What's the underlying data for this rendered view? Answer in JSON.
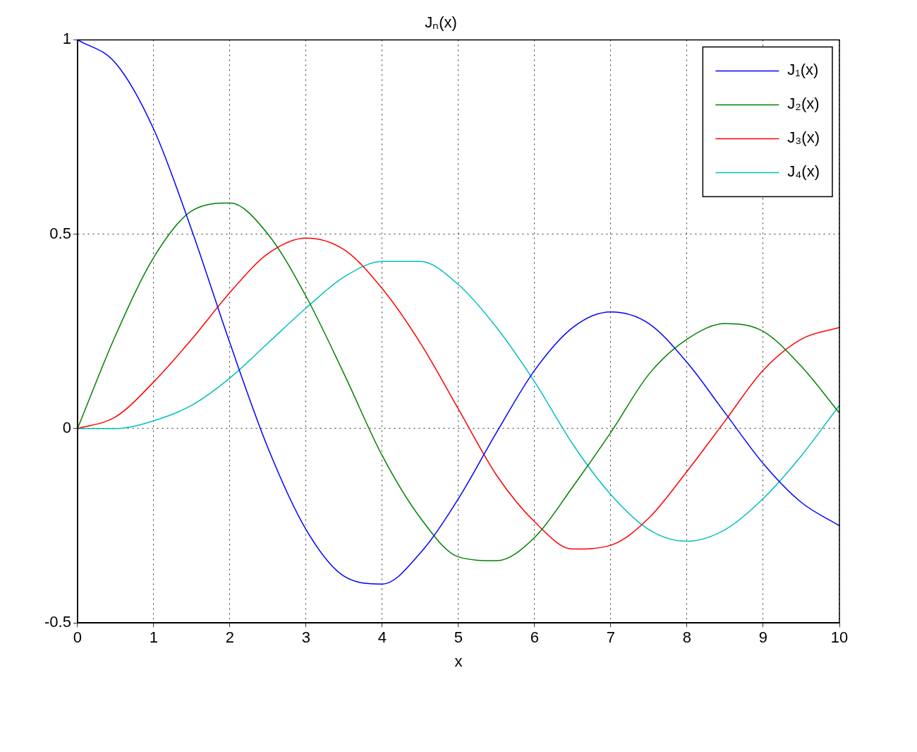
{
  "chart_data": {
    "type": "line",
    "title": "Jₙ(x)",
    "xlabel": "x",
    "x": [
      0,
      0.5,
      1,
      1.5,
      2,
      2.5,
      3,
      3.5,
      4,
      4.5,
      5,
      5.5,
      6,
      6.5,
      7,
      7.5,
      8,
      8.5,
      9,
      9.5,
      10
    ],
    "xlim": [
      0,
      10
    ],
    "xticks": [
      0,
      1,
      2,
      3,
      4,
      5,
      6,
      7,
      8,
      9,
      10
    ],
    "ylim": [
      -0.5,
      1
    ],
    "yticks": [
      -0.5,
      0,
      0.5,
      1
    ],
    "grid": true,
    "legend": "top right",
    "marker": "none",
    "line_style": "solid",
    "series": [
      {
        "name": "J₁(x)",
        "color": "#0000ff",
        "values": [
          1,
          0.94,
          0.77,
          0.51,
          0.22,
          -0.05,
          -0.26,
          -0.38,
          -0.4,
          -0.32,
          -0.18,
          -0.01,
          0.15,
          0.26,
          0.3,
          0.27,
          0.17,
          0.04,
          -0.09,
          -0.19,
          -0.25
        ]
      },
      {
        "name": "J₂(x)",
        "color": "#008000",
        "values": [
          0,
          0.24,
          0.44,
          0.56,
          0.58,
          0.5,
          0.34,
          0.14,
          -0.07,
          -0.23,
          -0.33,
          -0.34,
          -0.28,
          -0.15,
          -0.01,
          0.14,
          0.23,
          0.27,
          0.25,
          0.16,
          0.04
        ]
      },
      {
        "name": "J₃(x)",
        "color": "#ff0000",
        "values": [
          0,
          0.03,
          0.12,
          0.23,
          0.35,
          0.45,
          0.49,
          0.46,
          0.36,
          0.22,
          0.05,
          -0.12,
          -0.24,
          -0.31,
          -0.3,
          -0.23,
          -0.11,
          0.02,
          0.15,
          0.23,
          0.26
        ]
      },
      {
        "name": "J₄(x)",
        "color": "#00bfbf",
        "values": [
          0,
          0,
          0.02,
          0.06,
          0.13,
          0.22,
          0.31,
          0.39,
          0.43,
          0.43,
          0.37,
          0.26,
          0.12,
          -0.04,
          -0.17,
          -0.26,
          -0.29,
          -0.26,
          -0.18,
          -0.07,
          0.06
        ]
      }
    ]
  }
}
